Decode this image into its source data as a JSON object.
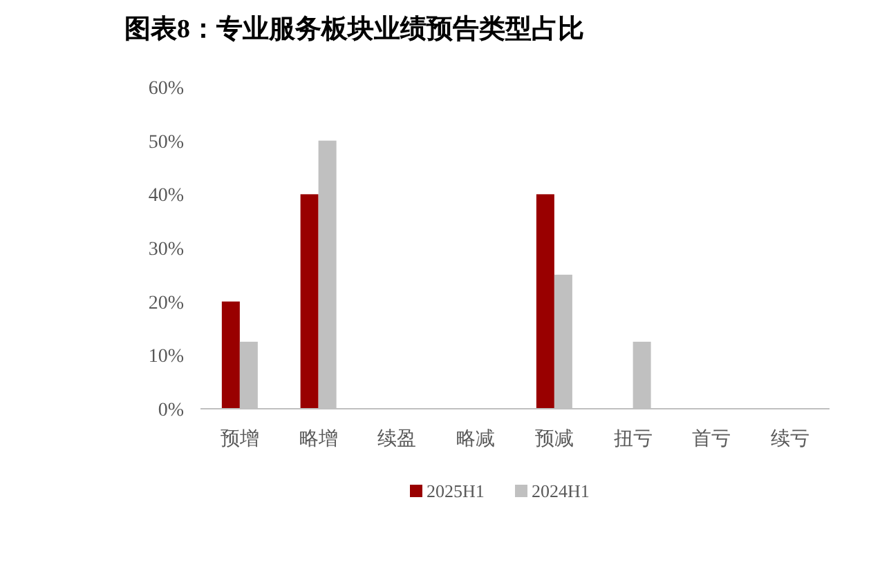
{
  "chart_data": {
    "type": "bar",
    "title": "图表8：专业服务板块业绩预告类型占比",
    "categories": [
      "预增",
      "略增",
      "续盈",
      "略减",
      "预减",
      "扭亏",
      "首亏",
      "续亏"
    ],
    "series": [
      {
        "name": "2025H1",
        "color": "#990000",
        "values": [
          20,
          40,
          0,
          0,
          40,
          0,
          0,
          0
        ]
      },
      {
        "name": "2024H1",
        "color": "#c0c0c0",
        "values": [
          12.5,
          50,
          0,
          0,
          25,
          12.5,
          0,
          0
        ]
      }
    ],
    "ylim": [
      0,
      60
    ],
    "yticks": [
      {
        "value": 0,
        "label": "0%"
      },
      {
        "value": 10,
        "label": "10%"
      },
      {
        "value": 20,
        "label": "20%"
      },
      {
        "value": 30,
        "label": "30%"
      },
      {
        "value": 40,
        "label": "40%"
      },
      {
        "value": 50,
        "label": "50%"
      },
      {
        "value": 60,
        "label": "60%"
      }
    ],
    "grid": false,
    "legend": "bottom"
  }
}
